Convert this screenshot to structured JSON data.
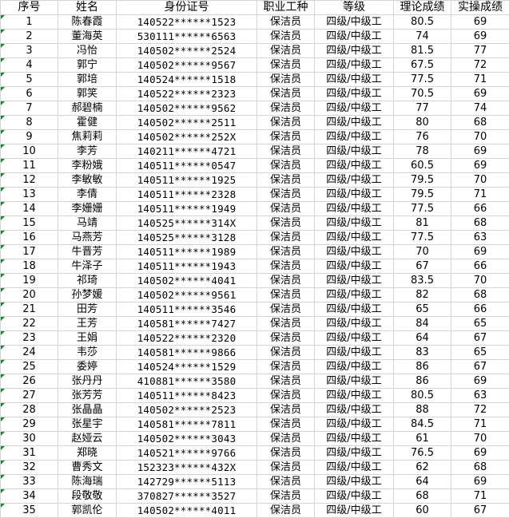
{
  "headers": [
    "序号",
    "姓名",
    "身份证号",
    "职业工种",
    "等级",
    "理论成绩",
    "实操成绩"
  ],
  "colors": {
    "grid": "#d4d4d4",
    "error_flag": "#1e7e34"
  },
  "rows": [
    [
      "1",
      "陈春霞",
      "140522******1523",
      "保洁员",
      "四级/中级工",
      "80.5",
      "69"
    ],
    [
      "2",
      "董海英",
      "530111******6563",
      "保洁员",
      "四级/中级工",
      "74",
      "69"
    ],
    [
      "3",
      "冯怡",
      "140502******2524",
      "保洁员",
      "四级/中级工",
      "81.5",
      "77"
    ],
    [
      "4",
      "郭宁",
      "140502******9567",
      "保洁员",
      "四级/中级工",
      "67.5",
      "72"
    ],
    [
      "5",
      "郭培",
      "140524******1518",
      "保洁员",
      "四级/中级工",
      "77.5",
      "71"
    ],
    [
      "6",
      "郭笑",
      "140522******2323",
      "保洁员",
      "四级/中级工",
      "70.5",
      "69"
    ],
    [
      "7",
      "郝碧楠",
      "140502******9562",
      "保洁员",
      "四级/中级工",
      "77",
      "74"
    ],
    [
      "8",
      "霍健",
      "140502******2511",
      "保洁员",
      "四级/中级工",
      "80",
      "68"
    ],
    [
      "9",
      "焦莉莉",
      "140502******252X",
      "保洁员",
      "四级/中级工",
      "76",
      "70"
    ],
    [
      "10",
      "李芳",
      "140211******4721",
      "保洁员",
      "四级/中级工",
      "78",
      "69"
    ],
    [
      "11",
      "李粉娥",
      "140511******0547",
      "保洁员",
      "四级/中级工",
      "60.5",
      "69"
    ],
    [
      "12",
      "李敏敏",
      "140511******1925",
      "保洁员",
      "四级/中级工",
      "79.5",
      "70"
    ],
    [
      "13",
      "李倩",
      "140511******2328",
      "保洁员",
      "四级/中级工",
      "79.5",
      "71"
    ],
    [
      "14",
      "李姗姗",
      "140511******1949",
      "保洁员",
      "四级/中级工",
      "77.5",
      "66"
    ],
    [
      "15",
      "马靖",
      "140525******314X",
      "保洁员",
      "四级/中级工",
      "81",
      "68"
    ],
    [
      "16",
      "马燕芳",
      "140525******3128",
      "保洁员",
      "四级/中级工",
      "77.5",
      "63"
    ],
    [
      "17",
      "牛晋芳",
      "140511******1989",
      "保洁员",
      "四级/中级工",
      "70",
      "69"
    ],
    [
      "18",
      "牛泽子",
      "140511******1943",
      "保洁员",
      "四级/中级工",
      "67",
      "66"
    ],
    [
      "19",
      "祁琦",
      "140502******4041",
      "保洁员",
      "四级/中级工",
      "83.5",
      "70"
    ],
    [
      "20",
      "孙梦媛",
      "140502******9561",
      "保洁员",
      "四级/中级工",
      "82",
      "68"
    ],
    [
      "21",
      "田芳",
      "140511******3546",
      "保洁员",
      "四级/中级工",
      "65",
      "66"
    ],
    [
      "22",
      "王芳",
      "140581******7427",
      "保洁员",
      "四级/中级工",
      "84",
      "65"
    ],
    [
      "23",
      "王娟",
      "140522******2320",
      "保洁员",
      "四级/中级工",
      "64",
      "67"
    ],
    [
      "24",
      "韦莎",
      "140581******9866",
      "保洁员",
      "四级/中级工",
      "83",
      "65"
    ],
    [
      "25",
      "委婷",
      "140524******1529",
      "保洁员",
      "四级/中级工",
      "86",
      "67"
    ],
    [
      "26",
      "张丹丹",
      "410881******3580",
      "保洁员",
      "四级/中级工",
      "86",
      "69"
    ],
    [
      "27",
      "张芳芳",
      "140511******8423",
      "保洁员",
      "四级/中级工",
      "80.5",
      "63"
    ],
    [
      "28",
      "张晶晶",
      "140502******2523",
      "保洁员",
      "四级/中级工",
      "88",
      "72"
    ],
    [
      "29",
      "张星宇",
      "140581******7811",
      "保洁员",
      "四级/中级工",
      "84.5",
      "71"
    ],
    [
      "30",
      "赵娅云",
      "140502******3043",
      "保洁员",
      "四级/中级工",
      "61",
      "70"
    ],
    [
      "31",
      "郑晓",
      "140521******9766",
      "保洁员",
      "四级/中级工",
      "76.5",
      "69"
    ],
    [
      "32",
      "曹秀文",
      "152323******432X",
      "保洁员",
      "四级/中级工",
      "62",
      "68"
    ],
    [
      "33",
      "陈海瑞",
      "142729******5113",
      "保洁员",
      "四级/中级工",
      "64",
      "69"
    ],
    [
      "34",
      "段敬敬",
      "370827******3527",
      "保洁员",
      "四级/中级工",
      "68",
      "71"
    ],
    [
      "35",
      "郭凯伦",
      "140502******4011",
      "保洁员",
      "四级/中级工",
      "60",
      "67"
    ]
  ]
}
